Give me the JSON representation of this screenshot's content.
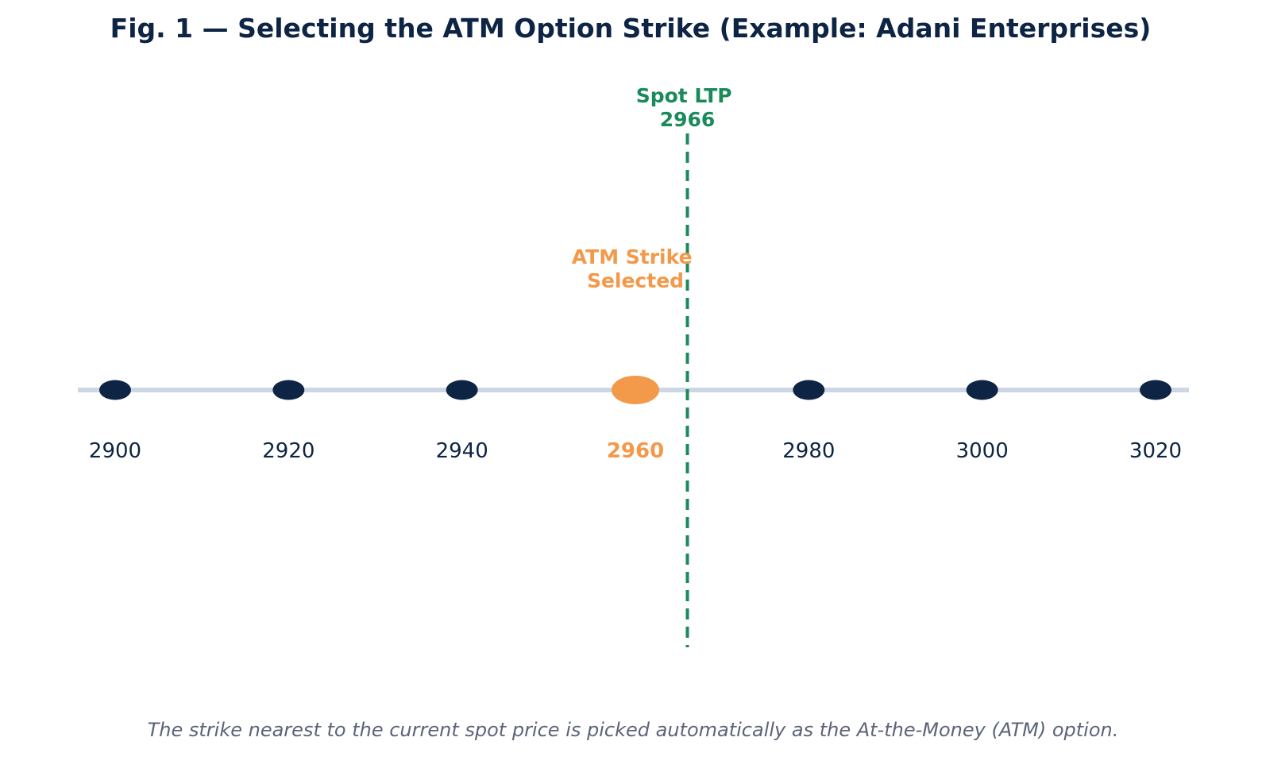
{
  "title": "Fig. 1 — Selecting the ATM Option Strike (Example: Adani Enterprises)",
  "caption": "The strike nearest to the current spot price is picked automatically as the At-the-Money (ATM) option.",
  "spot": {
    "label_line1": "Spot LTP",
    "label_line2": "2966",
    "value": 2966
  },
  "atm": {
    "label_line1": "ATM Strike",
    "label_line2": "Selected",
    "strike": 2960
  },
  "strikes": [
    {
      "label": "2900",
      "value": 2900,
      "selected": false
    },
    {
      "label": "2920",
      "value": 2920,
      "selected": false
    },
    {
      "label": "2940",
      "value": 2940,
      "selected": false
    },
    {
      "label": "2960",
      "value": 2960,
      "selected": true
    },
    {
      "label": "2980",
      "value": 2980,
      "selected": false
    },
    {
      "label": "3000",
      "value": 3000,
      "selected": false
    },
    {
      "label": "3020",
      "value": 3020,
      "selected": false
    }
  ],
  "colors": {
    "navy": "#0d2444",
    "orange": "#f2994a",
    "green": "#1b8a5a",
    "axis": "#cdd6e4",
    "caption": "#5b6478"
  }
}
